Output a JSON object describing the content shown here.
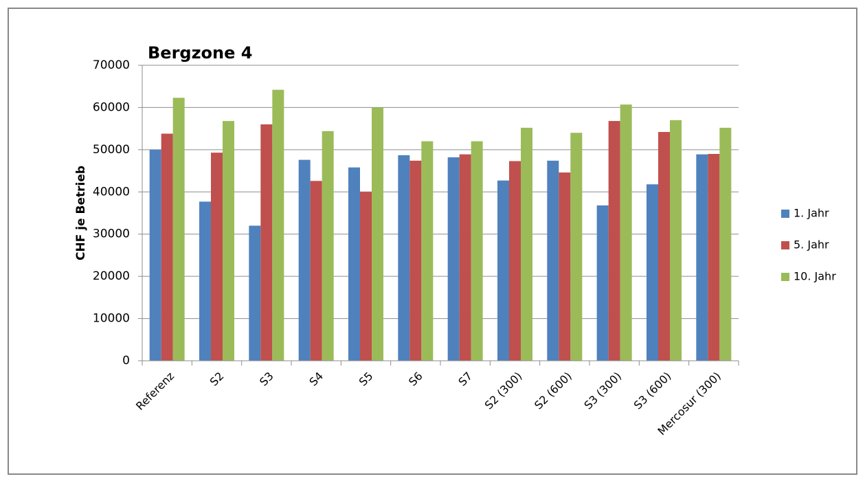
{
  "chart_data": {
    "type": "bar",
    "title": "Bergzone 4",
    "y_label": "CHF je Betrieb",
    "categories": [
      "Referenz",
      "S2",
      "S3",
      "S4",
      "S5",
      "S6",
      "S7",
      "S2 (300)",
      "S2 (600)",
      "S3 (300)",
      "S3 (600)",
      "Mercosur (300)"
    ],
    "series": [
      {
        "name": "1. Jahr",
        "color": "#4f81bd",
        "values": [
          50000,
          37700,
          32000,
          47600,
          45800,
          48700,
          48200,
          42700,
          47400,
          36800,
          41800,
          48900
        ]
      },
      {
        "name": "5. Jahr",
        "color": "#c0504d",
        "values": [
          53800,
          49300,
          56000,
          42600,
          40000,
          47400,
          48900,
          47300,
          44600,
          56800,
          54200,
          49000
        ]
      },
      {
        "name": "10. Jahr",
        "color": "#9bbb59",
        "values": [
          62300,
          56800,
          64200,
          54400,
          60000,
          52000,
          52000,
          55200,
          54000,
          60700,
          57000,
          55200
        ]
      }
    ],
    "ylim": [
      0,
      70000
    ],
    "yticks": [
      0,
      10000,
      20000,
      30000,
      40000,
      50000,
      60000,
      70000
    ],
    "grid": true,
    "legend": "right"
  }
}
